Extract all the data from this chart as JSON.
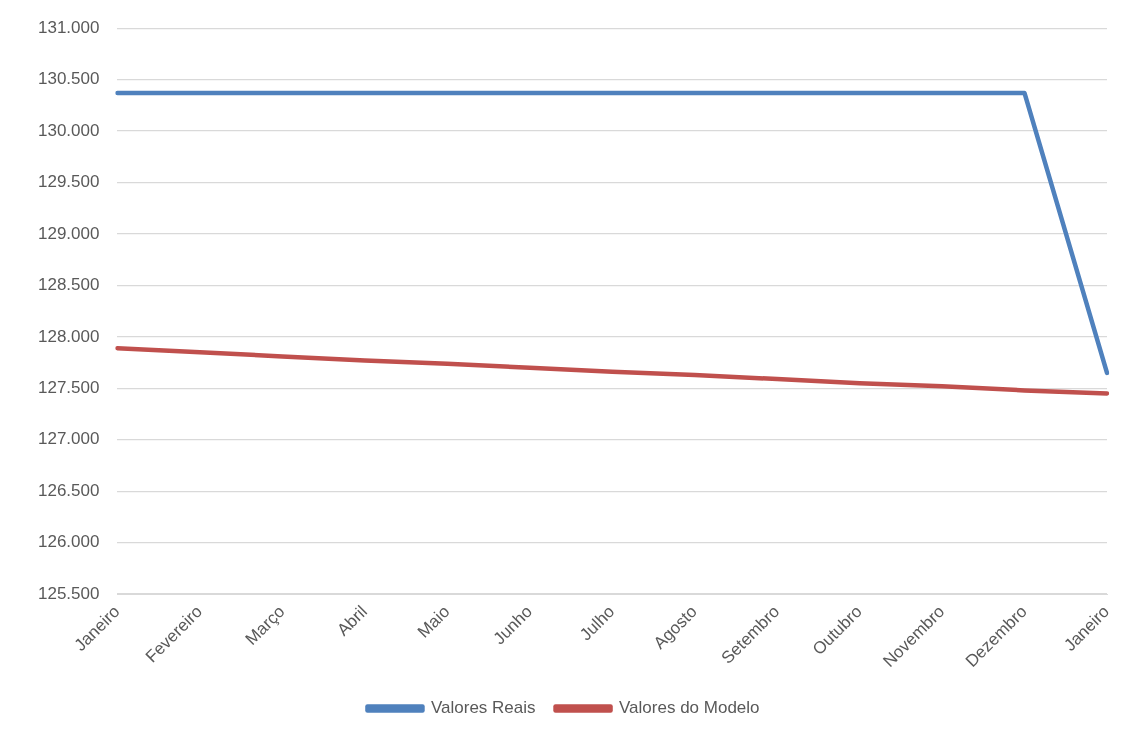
{
  "chart_data": {
    "type": "line",
    "categories": [
      "Janeiro",
      "Fevereiro",
      "Março",
      "Abril",
      "Maio",
      "Junho",
      "Julho",
      "Agosto",
      "Setembro",
      "Outubro",
      "Novembro",
      "Dezembro",
      "Janeiro"
    ],
    "series": [
      {
        "name": "Valores Reais",
        "color": "#4f81bd",
        "values": [
          130370,
          130370,
          130370,
          130370,
          130370,
          130370,
          130370,
          130370,
          130370,
          130370,
          130370,
          130370,
          127650
        ]
      },
      {
        "name": "Valores do Modelo",
        "color": "#c0504d",
        "values": [
          127890,
          127850,
          127810,
          127770,
          127740,
          127700,
          127660,
          127630,
          127590,
          127550,
          127520,
          127480,
          127450
        ]
      }
    ],
    "ylim": [
      125500,
      131000
    ],
    "yticks": [
      {
        "value": 125500,
        "label": "125.500"
      },
      {
        "value": 126000,
        "label": "126.000"
      },
      {
        "value": 126500,
        "label": "126.500"
      },
      {
        "value": 127000,
        "label": "127.000"
      },
      {
        "value": 127500,
        "label": "127.500"
      },
      {
        "value": 128000,
        "label": "128.000"
      },
      {
        "value": 128500,
        "label": "128.500"
      },
      {
        "value": 129000,
        "label": "129.000"
      },
      {
        "value": 129500,
        "label": "129.500"
      },
      {
        "value": 130000,
        "label": "130.000"
      },
      {
        "value": 130500,
        "label": "130.500"
      },
      {
        "value": 131000,
        "label": "131.000"
      }
    ],
    "grid": "y",
    "legend": "bottom",
    "marker": "none",
    "line_style": "solid"
  }
}
